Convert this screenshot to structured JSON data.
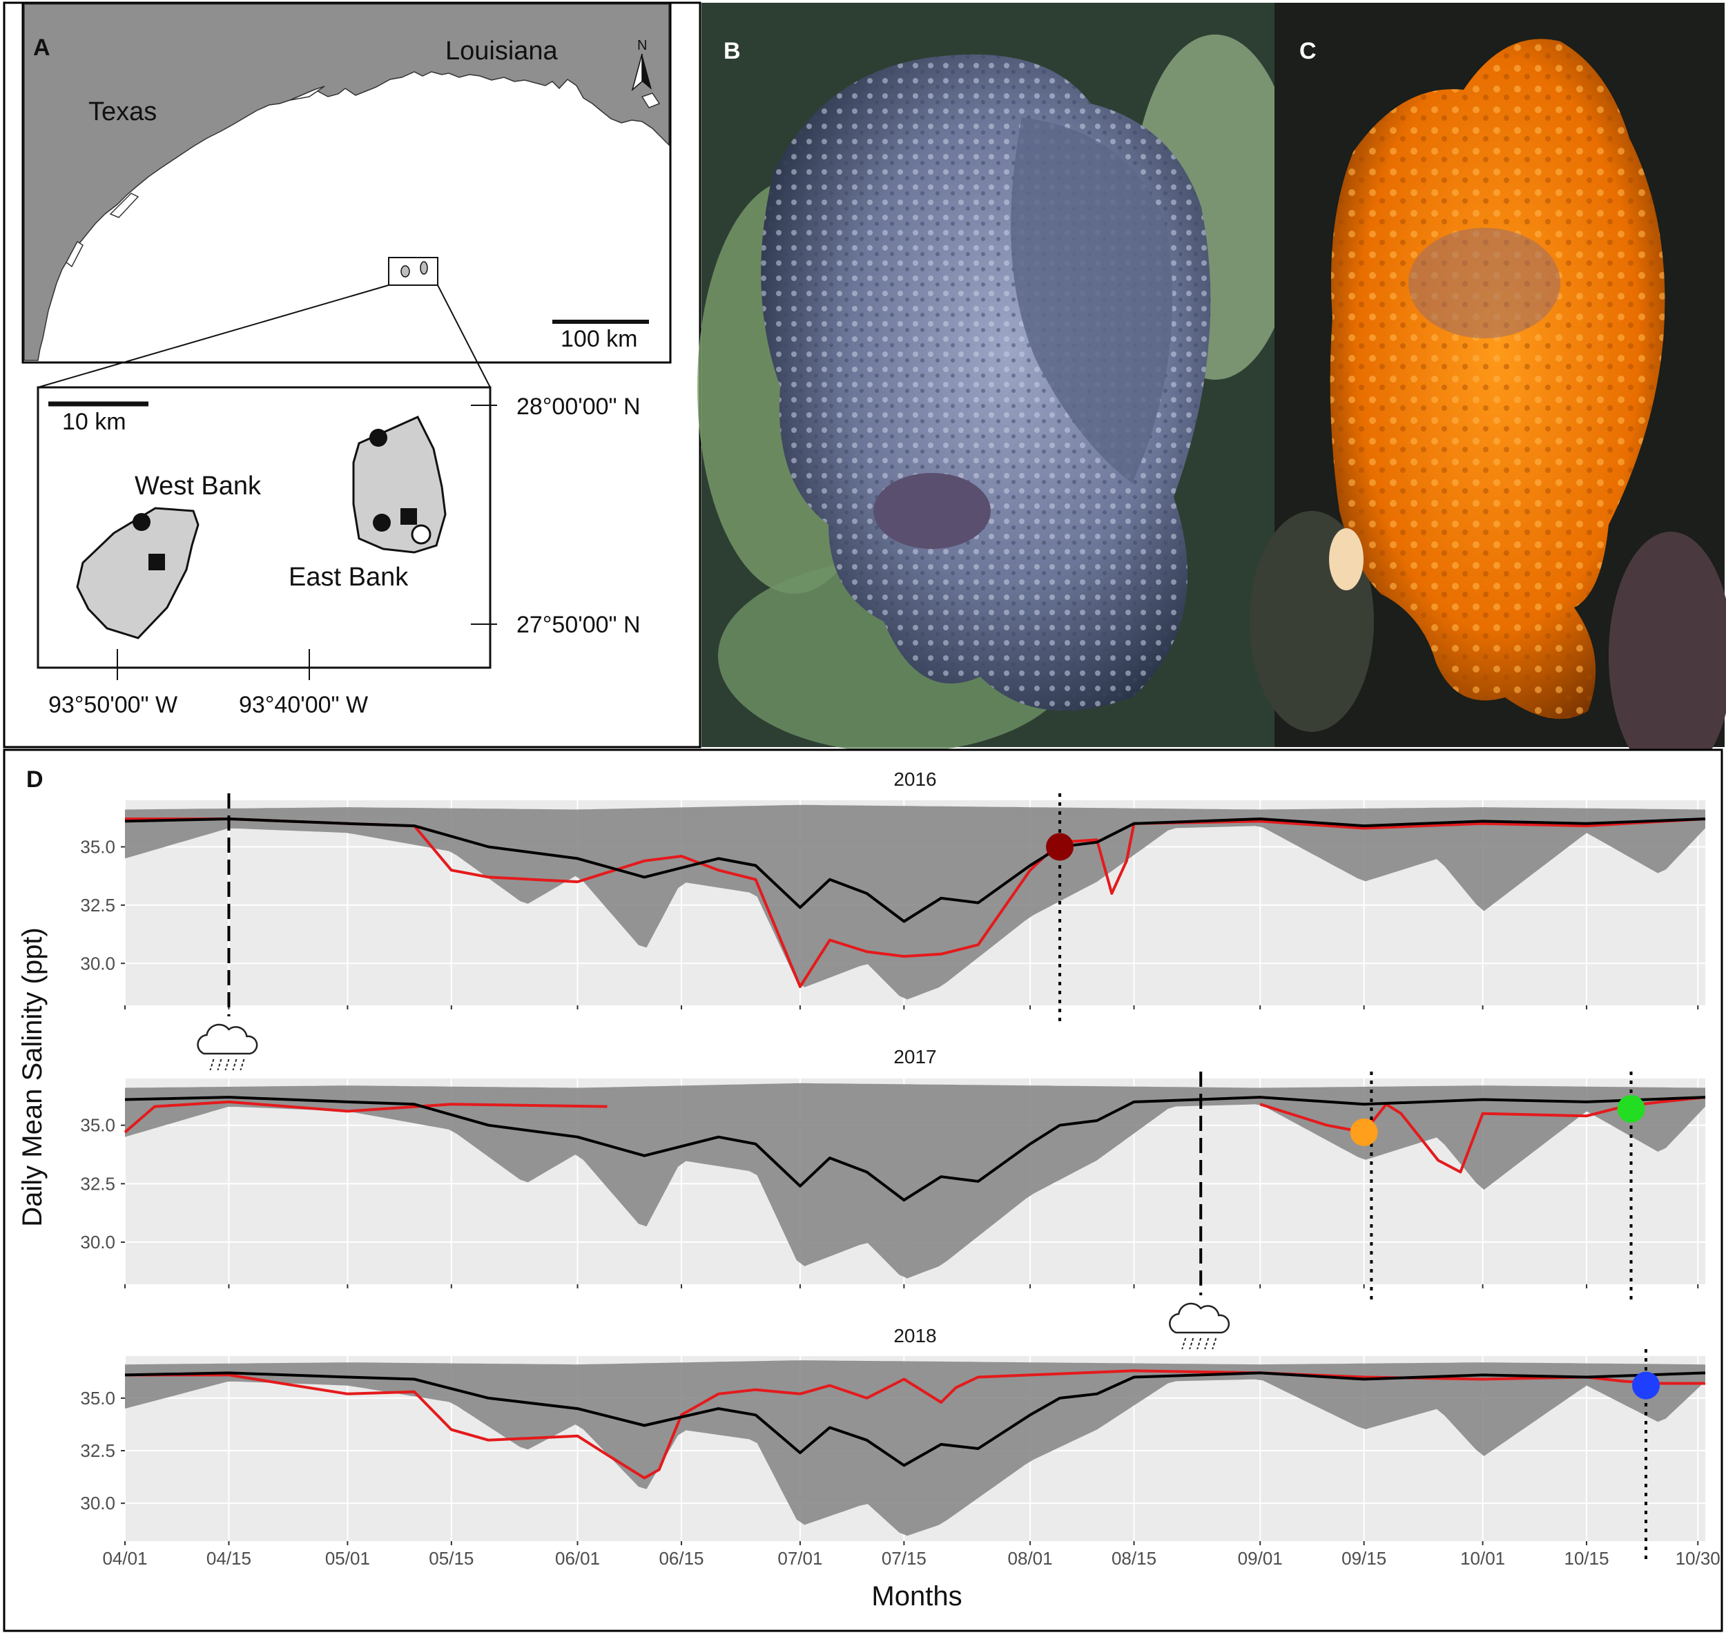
{
  "panel_a": {
    "label": "A",
    "states": [
      "Texas",
      "Louisiana"
    ],
    "north": "N",
    "scale_large": "100 km",
    "scale_small": "10 km",
    "banks": [
      "West Bank",
      "East Bank"
    ],
    "latitudes": [
      "28°00'00\" N",
      "27°50'00\" N"
    ],
    "longitudes": [
      "93°50'00\" W",
      "93°40'00\" W"
    ]
  },
  "panel_b": {
    "label": "B"
  },
  "panel_c": {
    "label": "C"
  },
  "panel_d": {
    "label": "D"
  },
  "chart_data": {
    "type": "line",
    "ylabel": "Daily Mean Salinity (ppt)",
    "xlabel": "Months",
    "x_ticks": [
      "04/01",
      "04/15",
      "05/01",
      "05/15",
      "06/01",
      "06/15",
      "07/01",
      "07/15",
      "08/01",
      "08/15",
      "09/01",
      "09/15",
      "10/01",
      "10/15",
      "10/30"
    ],
    "y_ticks": [
      "35.0",
      "32.5",
      "30.0"
    ],
    "ylim": [
      28.2,
      37.0
    ],
    "grid": true,
    "colors": {
      "climatology": "#000000",
      "band": "#8a8a8a",
      "year_series": "#e41a1c",
      "year_band": "#a52a2a",
      "panel_bg": "#ebebeb"
    },
    "climatology_mean": {
      "dates": [
        "04/01",
        "04/15",
        "05/01",
        "05/10",
        "05/20",
        "06/01",
        "06/10",
        "06/20",
        "06/25",
        "07/01",
        "07/05",
        "07/10",
        "07/15",
        "07/20",
        "07/25",
        "08/01",
        "08/05",
        "08/10",
        "08/15",
        "09/01",
        "09/15",
        "10/01",
        "10/15",
        "10/31"
      ],
      "values": [
        36.1,
        36.2,
        36.0,
        35.9,
        35.0,
        34.5,
        33.7,
        34.5,
        34.2,
        32.4,
        33.6,
        33.0,
        31.8,
        32.8,
        32.6,
        34.2,
        35.0,
        35.2,
        36.0,
        36.2,
        35.9,
        36.1,
        36.0,
        36.2
      ]
    },
    "climatology_min": {
      "dates": [
        "04/01",
        "04/15",
        "05/01",
        "05/15",
        "05/25",
        "06/01",
        "06/10",
        "06/15",
        "06/25",
        "07/01",
        "07/10",
        "07/15",
        "07/20",
        "08/01",
        "08/10",
        "08/20",
        "09/01",
        "09/15",
        "09/25",
        "10/01",
        "10/15",
        "10/25",
        "10/31"
      ],
      "values": [
        34.5,
        35.8,
        35.6,
        34.8,
        32.5,
        33.8,
        30.5,
        33.5,
        33.0,
        28.9,
        30.0,
        28.4,
        29.0,
        32.0,
        33.5,
        35.8,
        35.9,
        33.5,
        34.5,
        32.2,
        35.6,
        33.8,
        35.8
      ]
    },
    "climatology_max": {
      "dates": [
        "04/01",
        "05/01",
        "06/01",
        "07/01",
        "08/01",
        "09/01",
        "10/01",
        "10/31"
      ],
      "values": [
        36.6,
        36.7,
        36.6,
        36.8,
        36.7,
        36.6,
        36.7,
        36.6
      ]
    },
    "panels": [
      {
        "title": "2016",
        "red_series": {
          "dates": [
            "04/01",
            "04/15",
            "05/01",
            "05/10",
            "05/15",
            "05/20",
            "06/01",
            "06/10",
            "06/15",
            "06/20",
            "06/25",
            "07/01",
            "07/05",
            "07/10",
            "07/15",
            "07/20",
            "07/25",
            "08/01",
            "08/05",
            "08/10",
            "08/12",
            "08/14",
            "08/15",
            "09/01",
            "09/15",
            "10/01",
            "10/15",
            "10/31"
          ],
          "values": [
            36.2,
            36.2,
            36.0,
            35.9,
            34.0,
            33.7,
            33.5,
            34.4,
            34.6,
            34.0,
            33.6,
            29.0,
            31.0,
            30.5,
            30.3,
            30.4,
            30.8,
            34.0,
            35.2,
            35.3,
            33.0,
            34.4,
            36.0,
            36.1,
            35.8,
            36.0,
            35.9,
            36.2
          ]
        },
        "markers": [
          {
            "date": "08/05",
            "value": 35.0,
            "color": "#8b0000"
          }
        ],
        "event_lines": [
          {
            "date": "04/15",
            "style": "dashed",
            "icon": "rain-cloud-icon"
          },
          {
            "date": "08/05",
            "style": "dotted"
          }
        ]
      },
      {
        "title": "2017",
        "red_series_segments": [
          {
            "dates": [
              "04/01",
              "04/05",
              "04/15",
              "05/01",
              "05/15",
              "06/05"
            ],
            "values": [
              34.7,
              35.8,
              36.0,
              35.6,
              35.9,
              35.8
            ]
          },
          {
            "dates": [
              "09/01",
              "09/10",
              "09/15",
              "09/18",
              "09/20",
              "09/25",
              "09/28",
              "10/01",
              "10/15",
              "10/20",
              "10/25",
              "10/31"
            ],
            "values": [
              35.9,
              35.0,
              34.7,
              35.9,
              35.5,
              33.5,
              33.0,
              35.5,
              35.4,
              35.8,
              36.0,
              36.2
            ]
          }
        ],
        "markers": [
          {
            "date": "09/15",
            "value": 34.7,
            "color": "#ff9f1c"
          },
          {
            "date": "10/21",
            "value": 35.7,
            "color": "#22dd22"
          }
        ],
        "event_lines": [
          {
            "date": "08/24",
            "style": "dashed",
            "icon": "rain-cloud-icon"
          },
          {
            "date": "09/16",
            "style": "dotted"
          },
          {
            "date": "10/21",
            "style": "dotted"
          }
        ]
      },
      {
        "title": "2018",
        "red_series": {
          "dates": [
            "04/01",
            "04/15",
            "05/01",
            "05/10",
            "05/15",
            "05/20",
            "06/01",
            "06/05",
            "06/10",
            "06/12",
            "06/15",
            "06/20",
            "06/25",
            "07/01",
            "07/05",
            "07/10",
            "07/15",
            "07/20",
            "07/22",
            "07/25",
            "08/01",
            "08/15",
            "09/01",
            "09/15",
            "10/01",
            "10/15",
            "10/20",
            "10/25",
            "10/31"
          ],
          "values": [
            36.1,
            36.1,
            35.2,
            35.3,
            33.5,
            33.0,
            33.2,
            32.3,
            31.2,
            31.6,
            34.2,
            35.2,
            35.4,
            35.2,
            35.6,
            35.0,
            35.9,
            34.8,
            35.5,
            36.0,
            36.1,
            36.3,
            36.2,
            36.0,
            35.9,
            36.0,
            35.8,
            35.7,
            35.7
          ]
        },
        "markers": [
          {
            "date": "10/23",
            "value": 35.6,
            "color": "#1f3fff"
          }
        ],
        "event_lines": [
          {
            "date": "10/23",
            "style": "dotted"
          }
        ]
      }
    ]
  }
}
